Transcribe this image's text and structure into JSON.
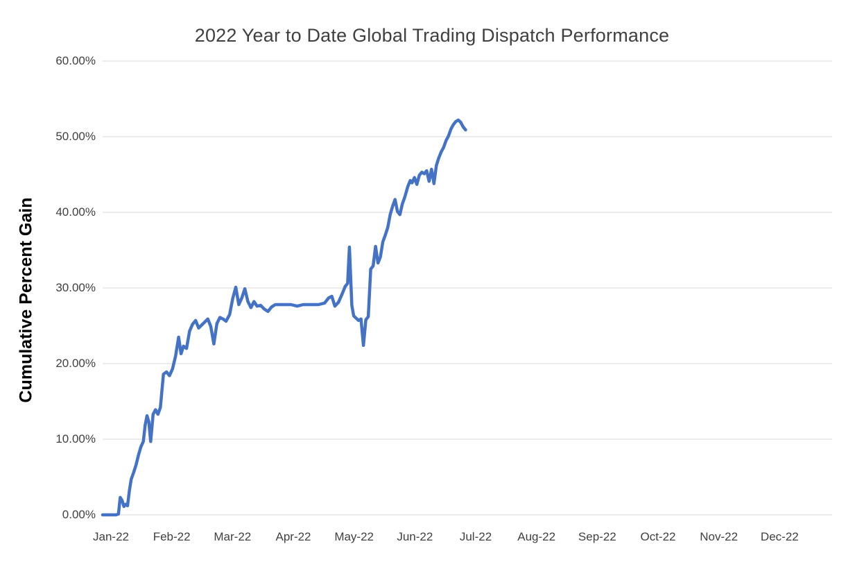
{
  "chart_data": {
    "type": "line",
    "title": "2022 Year to Date Global Trading Dispatch Performance",
    "xlabel": "",
    "ylabel": "Cumulative Percent Gain",
    "x_tick_labels": [
      "Jan-22",
      "Feb-22",
      "Mar-22",
      "Apr-22",
      "May-22",
      "Jun-22",
      "Jul-22",
      "Aug-22",
      "Sep-22",
      "Oct-22",
      "Nov-22",
      "Dec-22"
    ],
    "y_tick_labels": [
      "0.00%",
      "10.00%",
      "20.00%",
      "30.00%",
      "40.00%",
      "50.00%",
      "60.00%"
    ],
    "y_ticks": [
      0,
      10,
      20,
      30,
      40,
      50,
      60
    ],
    "ylim": [
      0,
      60
    ],
    "xlim_months": [
      0,
      12
    ],
    "grid": "horizontal",
    "legend": "none",
    "series": [
      {
        "name": "Cumulative Percent Gain",
        "x_unit": "months since Jan-22 (0 = Jan-22 tick)",
        "y_unit": "percent",
        "points": [
          [
            0.0,
            0.0
          ],
          [
            0.12,
            0.0
          ],
          [
            0.22,
            0.0
          ],
          [
            0.26,
            0.1
          ],
          [
            0.29,
            2.3
          ],
          [
            0.32,
            1.9
          ],
          [
            0.35,
            1.1
          ],
          [
            0.38,
            1.4
          ],
          [
            0.41,
            1.2
          ],
          [
            0.44,
            3.2
          ],
          [
            0.47,
            4.7
          ],
          [
            0.51,
            5.6
          ],
          [
            0.55,
            6.6
          ],
          [
            0.59,
            7.9
          ],
          [
            0.63,
            9.0
          ],
          [
            0.67,
            9.7
          ],
          [
            0.7,
            11.9
          ],
          [
            0.73,
            13.1
          ],
          [
            0.76,
            12.3
          ],
          [
            0.79,
            9.7
          ],
          [
            0.83,
            13.3
          ],
          [
            0.87,
            13.9
          ],
          [
            0.91,
            13.3
          ],
          [
            0.95,
            14.2
          ],
          [
            1.0,
            18.6
          ],
          [
            1.05,
            18.9
          ],
          [
            1.1,
            18.4
          ],
          [
            1.15,
            19.3
          ],
          [
            1.2,
            21.0
          ],
          [
            1.25,
            23.5
          ],
          [
            1.29,
            21.3
          ],
          [
            1.33,
            22.3
          ],
          [
            1.38,
            22.0
          ],
          [
            1.43,
            24.3
          ],
          [
            1.48,
            25.2
          ],
          [
            1.53,
            25.7
          ],
          [
            1.58,
            24.7
          ],
          [
            1.63,
            25.1
          ],
          [
            1.68,
            25.5
          ],
          [
            1.73,
            25.9
          ],
          [
            1.78,
            24.9
          ],
          [
            1.83,
            22.6
          ],
          [
            1.88,
            25.3
          ],
          [
            1.93,
            26.1
          ],
          [
            1.98,
            25.9
          ],
          [
            2.03,
            25.6
          ],
          [
            2.09,
            26.5
          ],
          [
            2.14,
            28.6
          ],
          [
            2.19,
            30.1
          ],
          [
            2.24,
            27.8
          ],
          [
            2.29,
            28.7
          ],
          [
            2.34,
            29.9
          ],
          [
            2.39,
            28.2
          ],
          [
            2.44,
            27.4
          ],
          [
            2.49,
            28.2
          ],
          [
            2.54,
            27.6
          ],
          [
            2.6,
            27.7
          ],
          [
            2.66,
            27.2
          ],
          [
            2.72,
            26.9
          ],
          [
            2.78,
            27.5
          ],
          [
            2.84,
            27.8
          ],
          [
            2.92,
            27.8
          ],
          [
            3.0,
            27.8
          ],
          [
            3.1,
            27.8
          ],
          [
            3.2,
            27.6
          ],
          [
            3.3,
            27.8
          ],
          [
            3.42,
            27.8
          ],
          [
            3.55,
            27.8
          ],
          [
            3.65,
            28.0
          ],
          [
            3.72,
            28.7
          ],
          [
            3.77,
            28.9
          ],
          [
            3.82,
            27.6
          ],
          [
            3.88,
            28.1
          ],
          [
            3.94,
            29.2
          ],
          [
            3.99,
            30.2
          ],
          [
            4.03,
            30.6
          ],
          [
            4.06,
            35.4
          ],
          [
            4.1,
            27.7
          ],
          [
            4.13,
            26.3
          ],
          [
            4.17,
            26.0
          ],
          [
            4.21,
            25.7
          ],
          [
            4.25,
            25.9
          ],
          [
            4.29,
            22.4
          ],
          [
            4.33,
            25.8
          ],
          [
            4.37,
            26.2
          ],
          [
            4.41,
            32.5
          ],
          [
            4.45,
            32.9
          ],
          [
            4.49,
            35.5
          ],
          [
            4.53,
            33.3
          ],
          [
            4.57,
            34.1
          ],
          [
            4.61,
            36.1
          ],
          [
            4.65,
            37.0
          ],
          [
            4.69,
            38.0
          ],
          [
            4.73,
            39.7
          ],
          [
            4.77,
            40.8
          ],
          [
            4.81,
            41.7
          ],
          [
            4.85,
            40.1
          ],
          [
            4.89,
            39.7
          ],
          [
            4.93,
            41.1
          ],
          [
            4.97,
            42.0
          ],
          [
            5.02,
            43.4
          ],
          [
            5.06,
            44.2
          ],
          [
            5.09,
            43.9
          ],
          [
            5.13,
            44.6
          ],
          [
            5.17,
            43.7
          ],
          [
            5.21,
            44.9
          ],
          [
            5.25,
            45.3
          ],
          [
            5.29,
            45.1
          ],
          [
            5.33,
            45.5
          ],
          [
            5.37,
            44.1
          ],
          [
            5.41,
            45.7
          ],
          [
            5.45,
            43.8
          ],
          [
            5.49,
            46.2
          ],
          [
            5.53,
            47.2
          ],
          [
            5.57,
            48.0
          ],
          [
            5.61,
            48.6
          ],
          [
            5.65,
            49.5
          ],
          [
            5.69,
            50.1
          ],
          [
            5.73,
            51.0
          ],
          [
            5.77,
            51.6
          ],
          [
            5.81,
            52.0
          ],
          [
            5.85,
            52.2
          ],
          [
            5.89,
            51.9
          ],
          [
            5.93,
            51.3
          ],
          [
            5.97,
            50.9
          ]
        ]
      }
    ]
  },
  "colors": {
    "background": "#FFFFFF",
    "line": "#4472C4",
    "grid": "#D9D9D9",
    "title_text": "#404040",
    "tick_text": "#404040",
    "axis_title_text": "#000000"
  }
}
